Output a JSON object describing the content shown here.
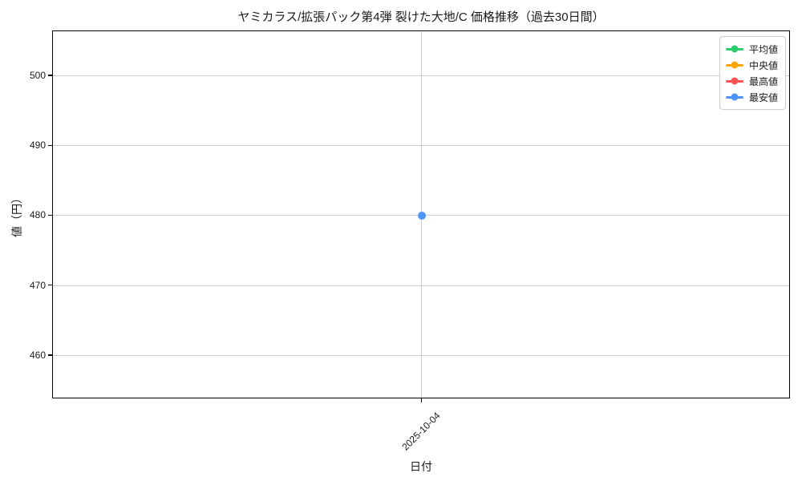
{
  "chart_data": {
    "type": "line",
    "title": "ヤミカラス/拡張パック第4弾 裂けた大地/C 価格推移（過去30日間）",
    "xlabel": "日付",
    "ylabel": "値（円）",
    "categories": [
      "2025-10-04"
    ],
    "series": [
      {
        "key": "mean",
        "name": "平均値",
        "color": "#2ecc71",
        "values": [
          null
        ]
      },
      {
        "key": "median",
        "name": "中央値",
        "color": "#ffa500",
        "values": [
          null
        ]
      },
      {
        "key": "max",
        "name": "最高値",
        "color": "#ff5252",
        "values": [
          null
        ]
      },
      {
        "key": "min",
        "name": "最安値",
        "color": "#4d94f7",
        "values": [
          480
        ]
      }
    ],
    "yticks": [
      460,
      470,
      480,
      490,
      500
    ],
    "ylim": [
      453.8,
      506.4
    ],
    "grid": true,
    "grid_color": "#cccccc",
    "axis_color": "#000000",
    "background_color": "#ffffff",
    "legend_position": "upper right"
  }
}
